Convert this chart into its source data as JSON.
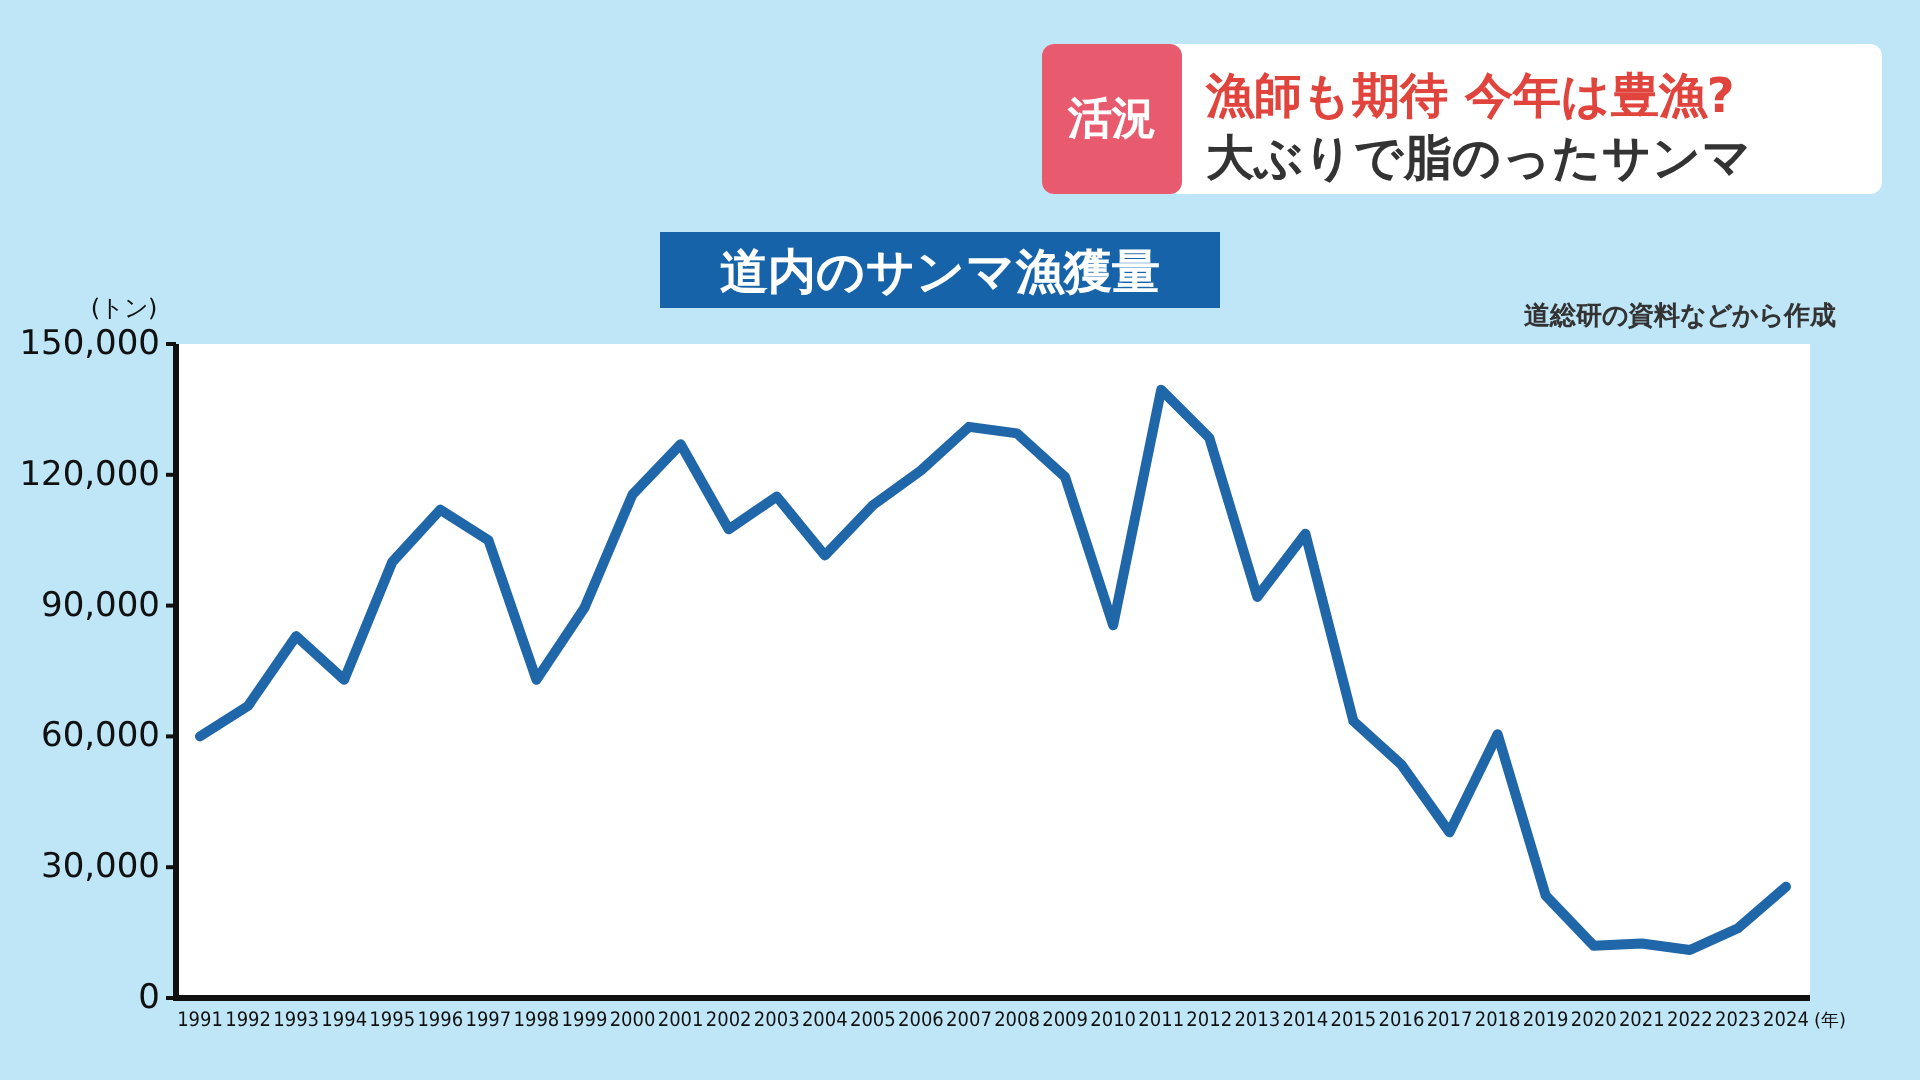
{
  "chart_data": {
    "type": "line",
    "title": "道内のサンマ漁獲量",
    "ylabel": "(トン)",
    "xlabel": "(年)",
    "annotations": [
      "活況",
      "漁師も期待 今年は豊漁?",
      "大ぶりで脂のったサンマ",
      "道総研の資料などから作成"
    ],
    "categories": [
      "1991",
      "1992",
      "1993",
      "1994",
      "1995",
      "1996",
      "1997",
      "1998",
      "1999",
      "2000",
      "2001",
      "2002",
      "2003",
      "2004",
      "2005",
      "2006",
      "2007",
      "2008",
      "2009",
      "2010",
      "2011",
      "2012",
      "2013",
      "2014",
      "2015",
      "2016",
      "2017",
      "2018",
      "2019",
      "2020",
      "2021",
      "2022",
      "2023",
      "2024"
    ],
    "series": [
      {
        "color": "#1f67a8",
        "values": [
          60000,
          67000,
          83000,
          73000,
          100000,
          112000,
          105000,
          73000,
          89500,
          115500,
          127000,
          107500,
          115000,
          101500,
          113000,
          121000,
          131000,
          129500,
          119500,
          85500,
          139500,
          128500,
          92000,
          106500,
          63500,
          53500,
          38000,
          60500,
          23500,
          12000,
          12500,
          11000,
          16000,
          25500
        ]
      }
    ],
    "ylim": [
      0,
      150000
    ],
    "yticks": [
      0,
      {
        "value": 30000,
        "label": "30,000"
      },
      {
        "value": 60000,
        "label": "60,000"
      },
      {
        "value": 90000,
        "label": "90,000"
      },
      {
        "value": 120000,
        "label": "120,000"
      },
      {
        "value": 150000,
        "label": "150,000"
      }
    ],
    "grid": false
  }
}
